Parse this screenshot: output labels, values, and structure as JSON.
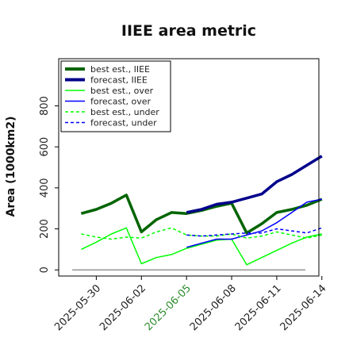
{
  "chart_data": {
    "type": "line",
    "title": "IIEE area metric",
    "xlabel": "",
    "ylabel": "Area (1000km2)",
    "ylim": [
      -30,
      1030
    ],
    "xlim_days": [
      -1.5,
      15.8
    ],
    "x_start_date": "2025-05-29",
    "yticks": [
      0,
      200,
      400,
      600,
      800
    ],
    "xticks": [
      {
        "label": "2025-05-30",
        "color": "#222222"
      },
      {
        "label": "2025-06-02",
        "color": "#222222"
      },
      {
        "label": "2025-06-05",
        "color": "#2e8b2e"
      },
      {
        "label": "2025-06-08",
        "color": "#222222"
      },
      {
        "label": "2025-06-11",
        "color": "#222222"
      },
      {
        "label": "2025-06-14",
        "color": "#222222"
      }
    ],
    "legend": {
      "position": "top-left",
      "entries": [
        {
          "label": "best est., IIEE",
          "color": "#006400",
          "width": 4,
          "dash": ""
        },
        {
          "label": "forecast, IIEE",
          "color": "#00008b",
          "width": 4,
          "dash": ""
        },
        {
          "label": "best est., over",
          "color": "#00ff00",
          "width": 1.5,
          "dash": ""
        },
        {
          "label": "forecast, over",
          "color": "#0000ff",
          "width": 1.5,
          "dash": ""
        },
        {
          "label": "best est., under",
          "color": "#00ff00",
          "width": 1.5,
          "dash": "4,3"
        },
        {
          "label": "forecast, under",
          "color": "#0000ff",
          "width": 1.5,
          "dash": "4,3"
        }
      ]
    },
    "zero_line": {
      "y": 0,
      "color": "#808080"
    },
    "series": [
      {
        "name": "best est., IIEE",
        "color": "#006400",
        "width": 3.5,
        "dash": "",
        "x": [
          "2025-05-29",
          "2025-05-30",
          "2025-05-31",
          "2025-06-01",
          "2025-06-02",
          "2025-06-03",
          "2025-06-04",
          "2025-06-05",
          "2025-06-06",
          "2025-06-07",
          "2025-06-08",
          "2025-06-09",
          "2025-06-10",
          "2025-06-11",
          "2025-06-12",
          "2025-06-13",
          "2025-06-14"
        ],
        "y": [
          275,
          295,
          325,
          365,
          185,
          245,
          280,
          275,
          290,
          310,
          325,
          180,
          225,
          280,
          295,
          315,
          345
        ]
      },
      {
        "name": "forecast, IIEE",
        "color": "#00008b",
        "width": 3.5,
        "dash": "",
        "x": [
          "2025-06-05",
          "2025-06-06",
          "2025-06-07",
          "2025-06-08",
          "2025-06-09",
          "2025-06-10",
          "2025-06-11",
          "2025-06-12",
          "2025-06-13",
          "2025-06-14"
        ],
        "y": [
          280,
          295,
          320,
          330,
          350,
          370,
          430,
          465,
          510,
          555
        ]
      },
      {
        "name": "best est., over",
        "color": "#00ff00",
        "width": 1.5,
        "dash": "",
        "x": [
          "2025-05-29",
          "2025-05-30",
          "2025-05-31",
          "2025-06-01",
          "2025-06-02",
          "2025-06-03",
          "2025-06-04",
          "2025-06-05",
          "2025-06-06",
          "2025-06-07",
          "2025-06-08",
          "2025-06-09",
          "2025-06-10",
          "2025-06-11",
          "2025-06-12",
          "2025-06-13",
          "2025-06-14"
        ],
        "y": [
          100,
          135,
          175,
          205,
          30,
          60,
          75,
          105,
          125,
          145,
          150,
          25,
          60,
          95,
          130,
          160,
          175
        ]
      },
      {
        "name": "forecast, over",
        "color": "#0000ff",
        "width": 1.5,
        "dash": "",
        "x": [
          "2025-06-05",
          "2025-06-06",
          "2025-06-07",
          "2025-06-08",
          "2025-06-09",
          "2025-06-10",
          "2025-06-11",
          "2025-06-12",
          "2025-06-13",
          "2025-06-14"
        ],
        "y": [
          110,
          130,
          150,
          150,
          170,
          190,
          230,
          280,
          330,
          345
        ]
      },
      {
        "name": "best est., under",
        "color": "#00ff00",
        "width": 1.5,
        "dash": "4,3",
        "x": [
          "2025-05-29",
          "2025-05-30",
          "2025-05-31",
          "2025-06-01",
          "2025-06-02",
          "2025-06-03",
          "2025-06-04",
          "2025-06-05",
          "2025-06-06",
          "2025-06-07",
          "2025-06-08",
          "2025-06-09",
          "2025-06-10",
          "2025-06-11",
          "2025-06-12",
          "2025-06-13",
          "2025-06-14"
        ],
        "y": [
          175,
          160,
          150,
          160,
          155,
          185,
          205,
          170,
          165,
          165,
          175,
          155,
          165,
          185,
          170,
          155,
          170
        ]
      },
      {
        "name": "forecast, under",
        "color": "#0000ff",
        "width": 1.5,
        "dash": "4,3",
        "x": [
          "2025-06-05",
          "2025-06-06",
          "2025-06-07",
          "2025-06-08",
          "2025-06-09",
          "2025-06-10",
          "2025-06-11",
          "2025-06-12",
          "2025-06-13",
          "2025-06-14"
        ],
        "y": [
          170,
          165,
          170,
          175,
          180,
          180,
          200,
          190,
          180,
          205
        ]
      }
    ]
  }
}
